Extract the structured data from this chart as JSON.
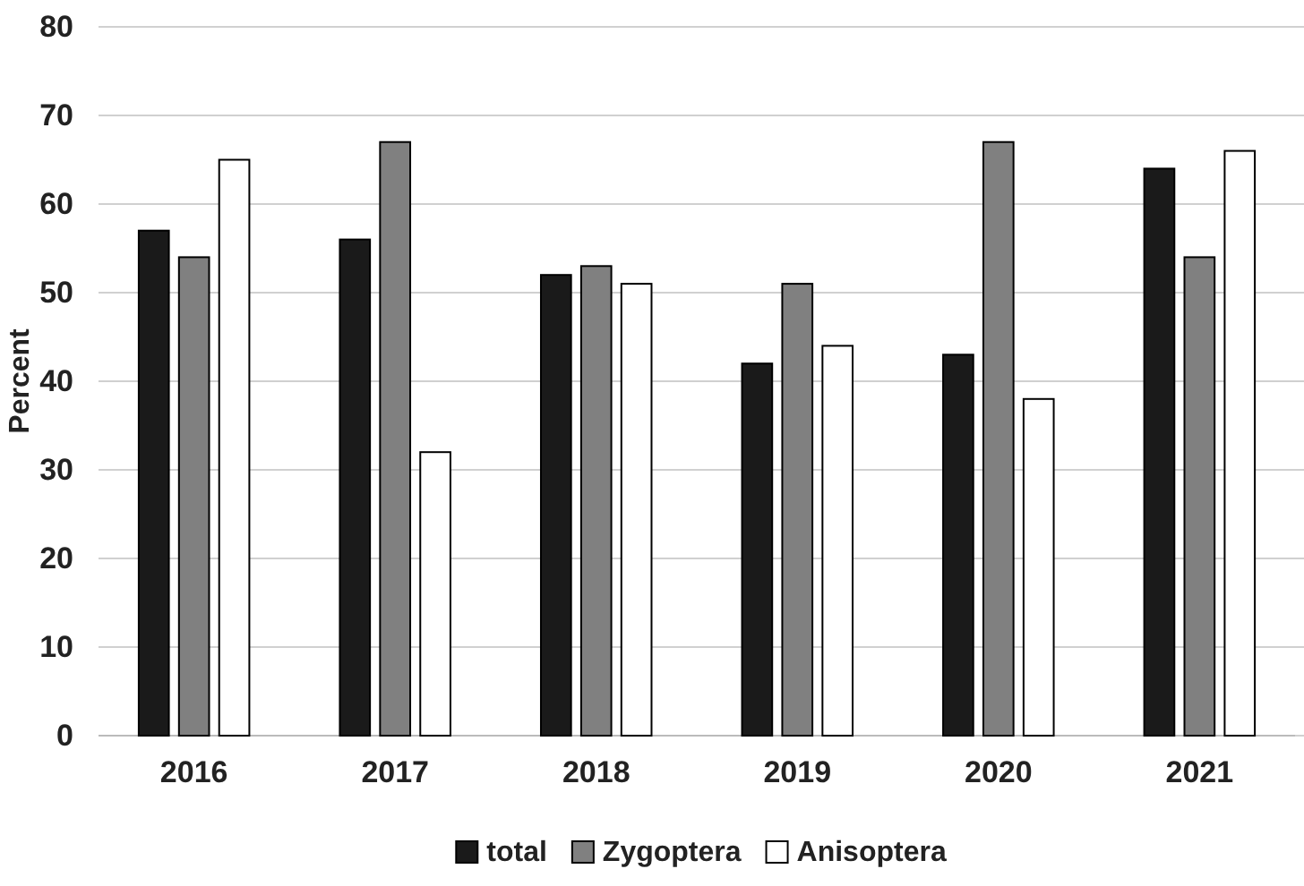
{
  "chart_data": {
    "type": "bar",
    "ylabel": "Percent",
    "categories": [
      "2016",
      "2017",
      "2018",
      "2019",
      "2020",
      "2021"
    ],
    "series": [
      {
        "name": "total",
        "color": "#1a1a1a",
        "values": [
          57,
          56,
          52,
          42,
          43,
          64
        ]
      },
      {
        "name": "Zygoptera",
        "color": "#808080",
        "values": [
          54,
          67,
          53,
          51,
          67,
          54
        ]
      },
      {
        "name": "Anisoptera",
        "color": "#ffffff",
        "values": [
          65,
          32,
          51,
          44,
          38,
          66
        ]
      }
    ],
    "ylim": [
      0,
      80
    ],
    "yticks": [
      0,
      10,
      20,
      30,
      40,
      50,
      60,
      70,
      80
    ],
    "grid": "y",
    "legend": "bottom"
  }
}
